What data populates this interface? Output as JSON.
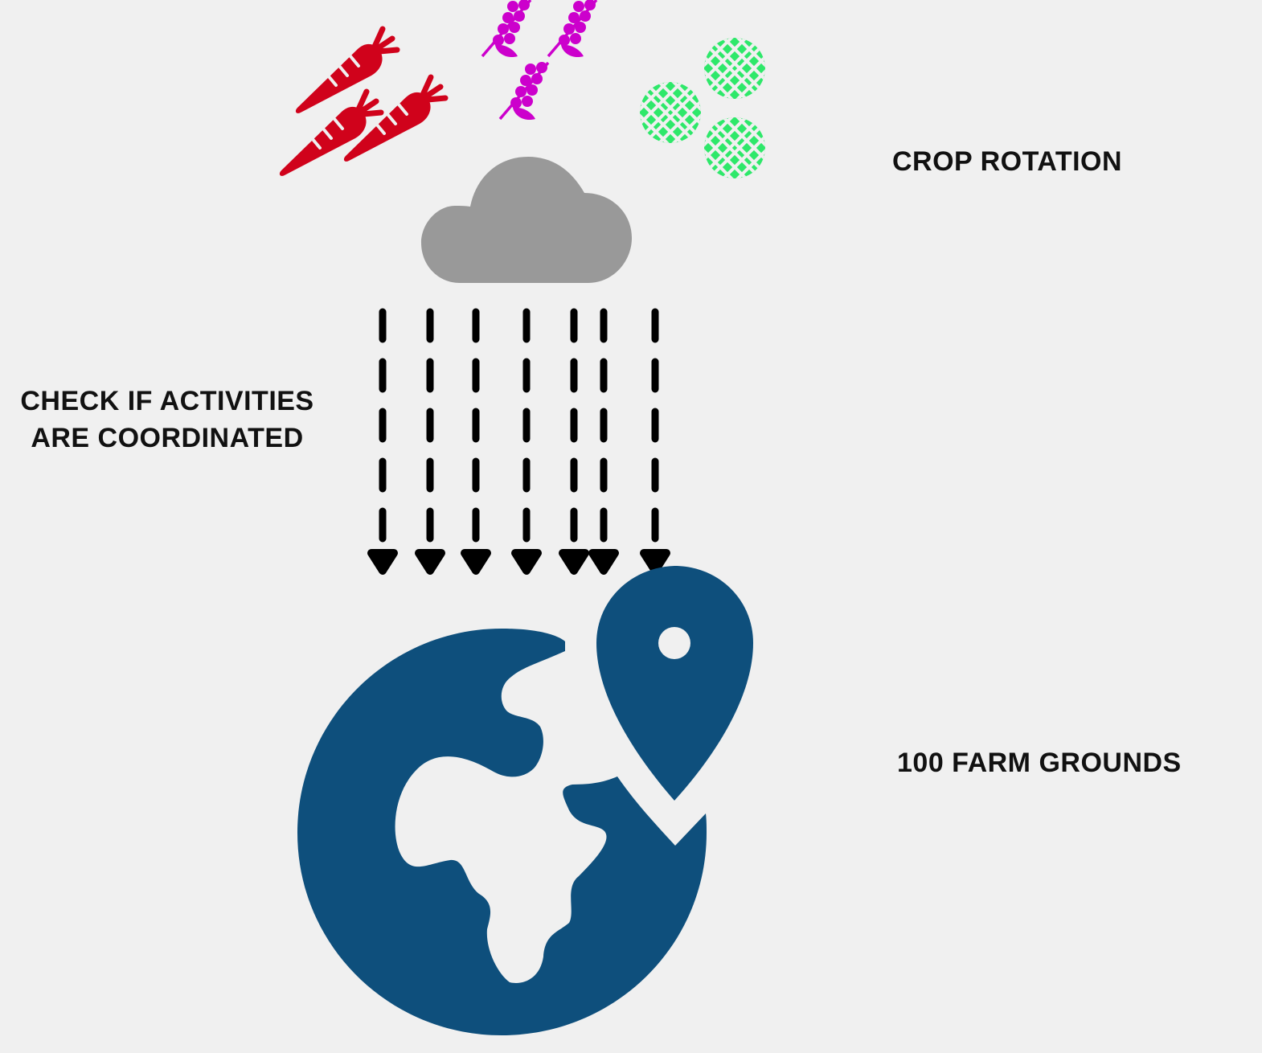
{
  "labels": {
    "crop_rotation": "CROP ROTATION",
    "check_line1": "CHECK IF ACTIVITIES",
    "check_line2": "ARE COORDINATED",
    "farm_grounds": "100 FARM GROUNDS"
  },
  "icons": {
    "carrot": "carrot-icon",
    "wheat": "wheat-icon",
    "pea": "pea-icon",
    "cloud": "cloud-icon",
    "globe": "globe-icon",
    "pin": "location-pin-icon"
  },
  "colors": {
    "background": "#f0f0f0",
    "carrot": "#d0021b",
    "wheat": "#cc00cc",
    "pea": "#2ee86a",
    "cloud": "#999999",
    "globe": "#0e4f7c",
    "arrow": "#000000",
    "text": "#111111"
  }
}
